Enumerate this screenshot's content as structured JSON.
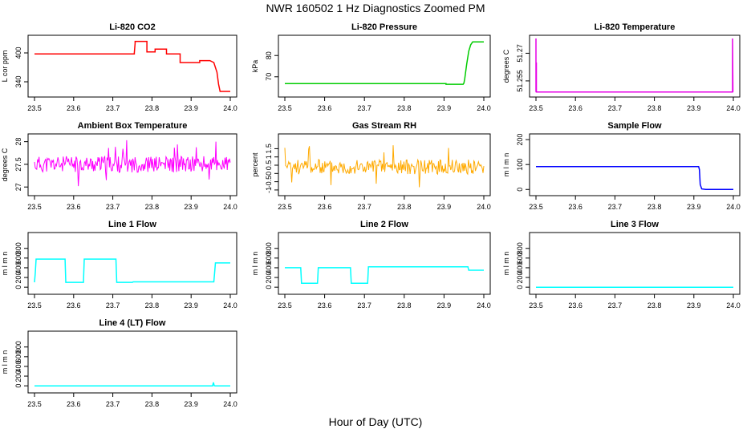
{
  "title": "NWR  160502  1 Hz Diagnostics Zoomed PM",
  "xlabel": "Hour of Day (UTC)",
  "chart_data": [
    {
      "type": "line",
      "title": "Li-820 CO2",
      "ylabel": "L cor ppm",
      "color": "#ff0000",
      "xlim": [
        23.5,
        24.0
      ],
      "ylim": [
        315,
        430
      ],
      "xticks": [
        "23.5",
        "23.6",
        "23.7",
        "23.8",
        "23.9",
        "24.0"
      ],
      "yticks": [
        340,
        400
      ],
      "x": [
        23.5,
        23.755,
        23.755,
        23.757,
        23.757,
        23.787,
        23.787,
        23.808,
        23.808,
        23.837,
        23.837,
        23.872,
        23.872,
        23.922,
        23.922,
        23.948,
        23.958,
        23.966,
        23.97,
        23.974,
        24.0
      ],
      "y": [
        398,
        398,
        400,
        420,
        424,
        424,
        402,
        402,
        408,
        408,
        398,
        398,
        380,
        380,
        384,
        384,
        380,
        360,
        335,
        320,
        320
      ]
    },
    {
      "type": "line",
      "title": "Li-820 Pressure",
      "ylabel": "kPa",
      "color": "#00cc00",
      "xlim": [
        23.5,
        24.0
      ],
      "ylim": [
        62,
        88
      ],
      "xticks": [
        "23.5",
        "23.6",
        "23.7",
        "23.8",
        "23.9",
        "24.0"
      ],
      "yticks": [
        70,
        80
      ],
      "x": [
        23.5,
        23.905,
        23.905,
        23.948,
        23.95,
        23.952,
        23.957,
        23.962,
        23.967,
        23.972,
        23.98,
        24.0
      ],
      "y": [
        66.8,
        66.8,
        66.5,
        66.5,
        67,
        69,
        76,
        82,
        85,
        86.4,
        86.4,
        86.4
      ]
    },
    {
      "type": "line",
      "title": "Li-820 Temperature",
      "ylabel": "degrees C",
      "color": "#e600e6",
      "xlim": [
        23.5,
        24.0
      ],
      "ylim": [
        51.248,
        51.278
      ],
      "xticks": [
        "23.5",
        "23.6",
        "23.7",
        "23.8",
        "23.9",
        "24.0"
      ],
      "yticks": [
        51.255,
        51.27
      ],
      "x": [
        23.5,
        23.5,
        23.5,
        23.501,
        23.501,
        23.502,
        23.502,
        23.998,
        23.998,
        23.999
      ],
      "y": [
        51.249,
        51.278,
        51.249,
        51.265,
        51.249,
        51.249,
        51.249,
        51.249,
        51.278,
        51.249
      ]
    },
    {
      "type": "line",
      "title": "Ambient Box Temperature",
      "ylabel": "degrees C",
      "color": "#ff00ff",
      "xlim": [
        23.5,
        24.0
      ],
      "ylim": [
        26.88,
        28.1
      ],
      "xticks": [
        "23.5",
        "23.6",
        "23.7",
        "23.8",
        "23.9",
        "24.0"
      ],
      "yticks": [
        27.0,
        27.5,
        28.0
      ],
      "noise": {
        "center": 27.5,
        "amp": 0.18,
        "min": 26.88,
        "max": 28.1,
        "seed": 11
      }
    },
    {
      "type": "line",
      "title": "Gas Stream RH",
      "ylabel": "percent",
      "color": "#ffaa00",
      "xlim": [
        23.5,
        24.0
      ],
      "ylim": [
        -1.15,
        2.2
      ],
      "xticks": [
        "23.5",
        "23.6",
        "23.7",
        "23.8",
        "23.9",
        "24.0"
      ],
      "yticks": [
        -1.0,
        -0.5,
        0.0,
        0.5,
        1.0,
        1.5
      ],
      "noise": {
        "center": 0.4,
        "amp": 0.45,
        "min": -1.1,
        "max": 2.1,
        "seed": 23
      }
    },
    {
      "type": "line",
      "title": "Sample Flow",
      "ylabel": "m l m n",
      "color": "#0000ff",
      "xlim": [
        23.5,
        24.0
      ],
      "ylim": [
        -12,
        210
      ],
      "xticks": [
        "23.5",
        "23.6",
        "23.7",
        "23.8",
        "23.9",
        "24.0"
      ],
      "yticks": [
        0,
        100,
        200
      ],
      "x": [
        23.5,
        23.912,
        23.912,
        23.914,
        23.916,
        23.92,
        23.93,
        24.0
      ],
      "y": [
        92,
        92,
        92,
        80,
        20,
        2,
        0,
        0
      ]
    },
    {
      "type": "line",
      "title": "Line 1 Flow",
      "ylabel": "m l m n",
      "color": "#00ffff",
      "xlim": [
        23.5,
        24.0
      ],
      "ylim": [
        -80,
        1060
      ],
      "xticks": [
        "23.5",
        "23.6",
        "23.7",
        "23.8",
        "23.9",
        "24.0"
      ],
      "yticks": [
        0,
        200,
        400,
        600,
        800
      ],
      "x": [
        23.5,
        23.502,
        23.504,
        23.578,
        23.58,
        23.625,
        23.627,
        23.708,
        23.71,
        23.75,
        23.752,
        23.958,
        23.96,
        23.962,
        24.0
      ],
      "y": [
        100,
        300,
        580,
        580,
        100,
        100,
        580,
        580,
        100,
        100,
        110,
        110,
        300,
        500,
        500
      ]
    },
    {
      "type": "line",
      "title": "Line 2 Flow",
      "ylabel": "m l m n",
      "color": "#00ffff",
      "xlim": [
        23.5,
        24.0
      ],
      "ylim": [
        -80,
        1060
      ],
      "xticks": [
        "23.5",
        "23.6",
        "23.7",
        "23.8",
        "23.9",
        "24.0"
      ],
      "yticks": [
        0,
        200,
        400,
        600,
        800
      ],
      "x": [
        23.5,
        23.54,
        23.542,
        23.582,
        23.584,
        23.665,
        23.667,
        23.708,
        23.71,
        23.96,
        23.962,
        24.0
      ],
      "y": [
        400,
        400,
        80,
        80,
        400,
        400,
        80,
        80,
        420,
        420,
        350,
        350
      ]
    },
    {
      "type": "line",
      "title": "Line 3 Flow",
      "ylabel": "m l m n",
      "color": "#00ffff",
      "xlim": [
        23.5,
        24.0
      ],
      "ylim": [
        -80,
        1060
      ],
      "xticks": [
        "23.5",
        "23.6",
        "23.7",
        "23.8",
        "23.9",
        "24.0"
      ],
      "yticks": [
        0,
        200,
        400,
        600,
        800
      ],
      "x": [
        23.5,
        24.0
      ],
      "y": [
        0,
        0
      ]
    },
    {
      "type": "line",
      "title": "Line 4 (LT) Flow",
      "ylabel": "m l m n",
      "color": "#00ffff",
      "xlim": [
        23.5,
        24.0
      ],
      "ylim": [
        -80,
        1060
      ],
      "xticks": [
        "23.5",
        "23.6",
        "23.7",
        "23.8",
        "23.9",
        "24.0"
      ],
      "yticks": [
        0,
        200,
        400,
        600,
        800
      ],
      "x": [
        23.5,
        23.955,
        23.957,
        23.959,
        23.961,
        24.0
      ],
      "y": [
        0,
        0,
        70,
        5,
        0,
        0
      ]
    }
  ]
}
